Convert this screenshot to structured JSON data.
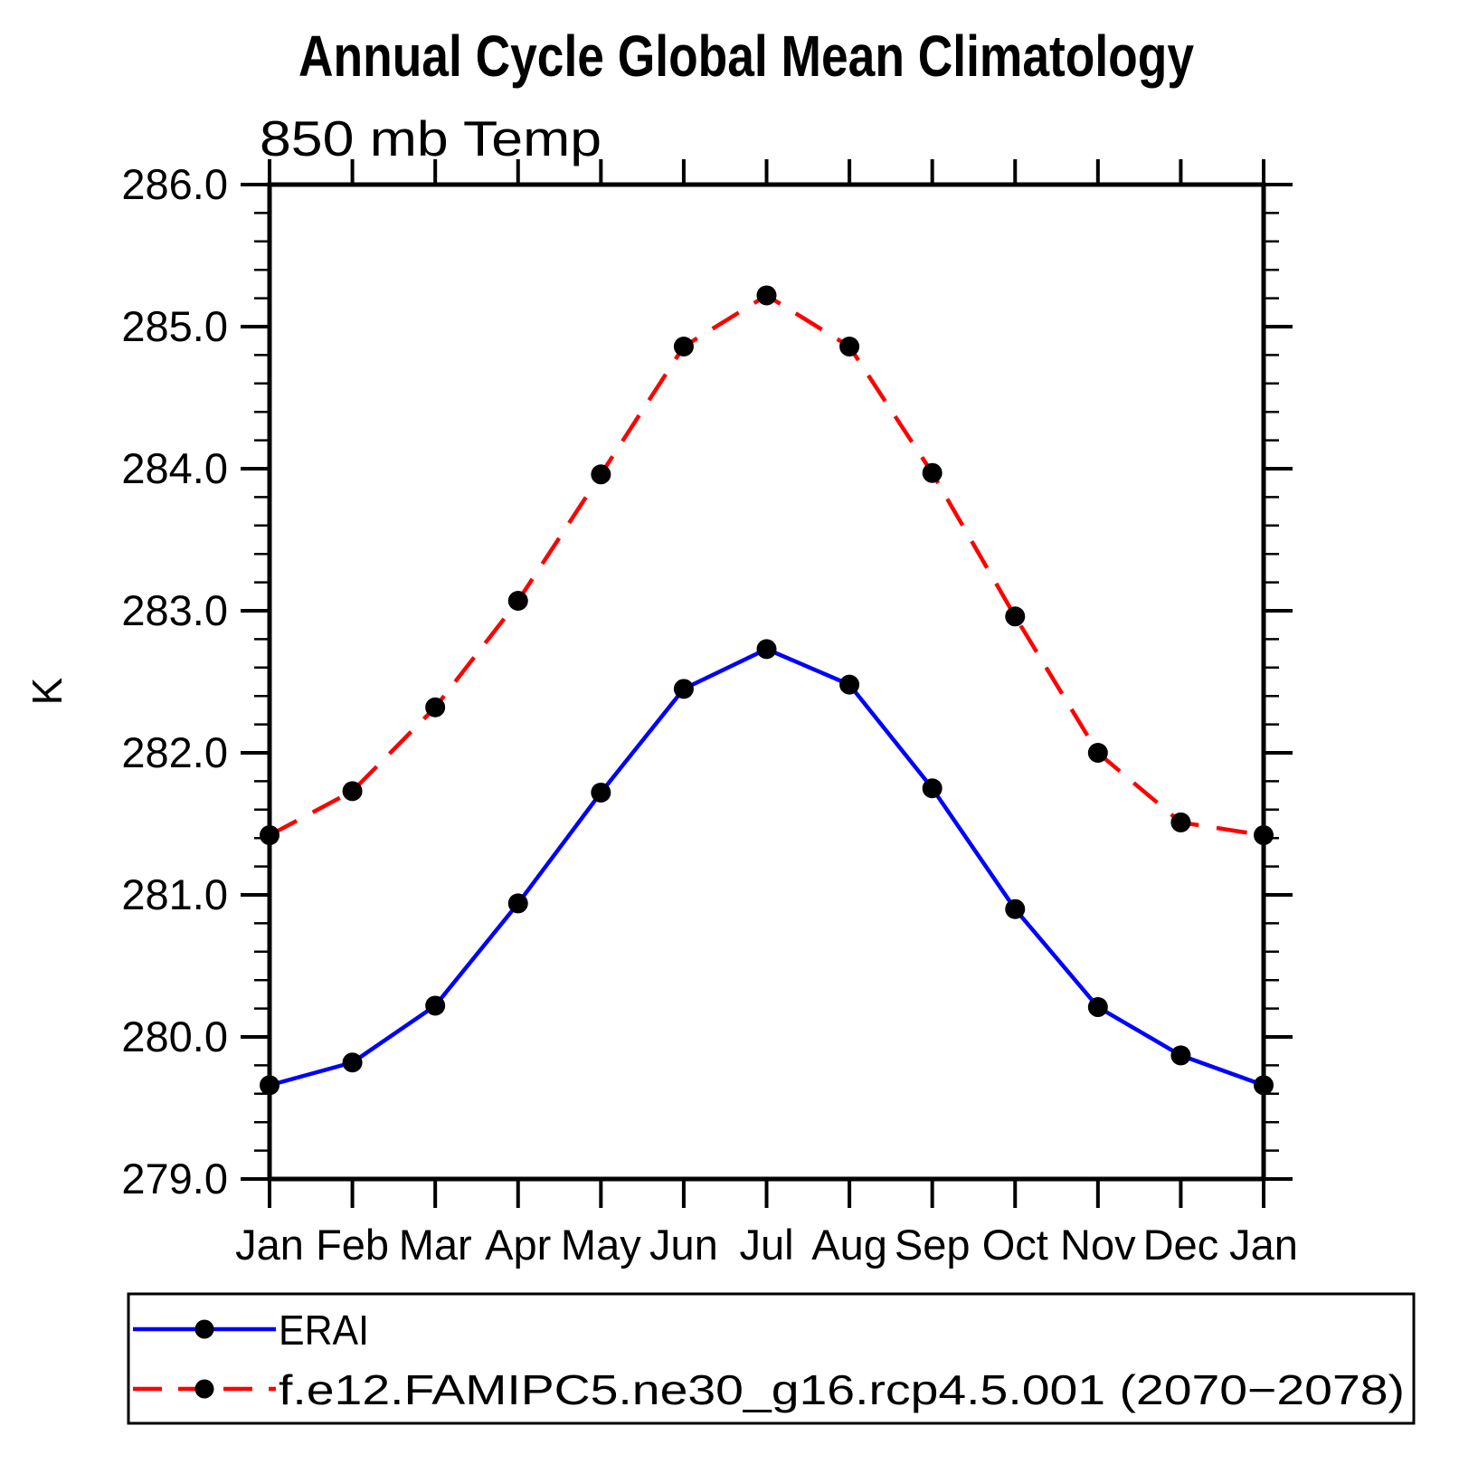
{
  "title": "Annual Cycle Global Mean Climatology",
  "subtitle": "850 mb Temp",
  "ylabel": "K",
  "legend": {
    "items": [
      {
        "label": "ERAI",
        "color": "#0000ff",
        "style": "solid",
        "marker": "black-dot"
      },
      {
        "label": "f.e12.FAMIPC5.ne30_g16.rcp4.5.001 (2070−2078)",
        "color": "#ff0000",
        "style": "dashed",
        "marker": "black-dot"
      }
    ]
  },
  "chart_data": {
    "type": "line",
    "title": "Annual Cycle Global Mean Climatology",
    "subtitle": "850 mb Temp",
    "xlabel": "",
    "ylabel": "K",
    "categories": [
      "Jan",
      "Feb",
      "Mar",
      "Apr",
      "May",
      "Jun",
      "Jul",
      "Aug",
      "Sep",
      "Oct",
      "Nov",
      "Dec",
      "Jan"
    ],
    "ylim": [
      279.0,
      286.0
    ],
    "ytick_step": 1.0,
    "yminor_step": 0.2,
    "grid": false,
    "legend_position": "bottom",
    "marker_color": "#000000",
    "axis_color": "#000000",
    "series": [
      {
        "name": "ERAI",
        "color": "#0000ff",
        "style": "solid",
        "values": [
          279.66,
          279.82,
          280.22,
          280.94,
          281.72,
          282.45,
          282.73,
          282.48,
          281.75,
          280.9,
          280.21,
          279.87,
          279.66
        ]
      },
      {
        "name": "f.e12.FAMIPC5.ne30_g16.rcp4.5.001 (2070−2078)",
        "color": "#ff0000",
        "style": "dashed",
        "values": [
          281.42,
          281.73,
          282.32,
          283.07,
          283.96,
          284.86,
          285.22,
          284.86,
          283.97,
          282.96,
          282.0,
          281.51,
          281.42
        ]
      }
    ]
  }
}
